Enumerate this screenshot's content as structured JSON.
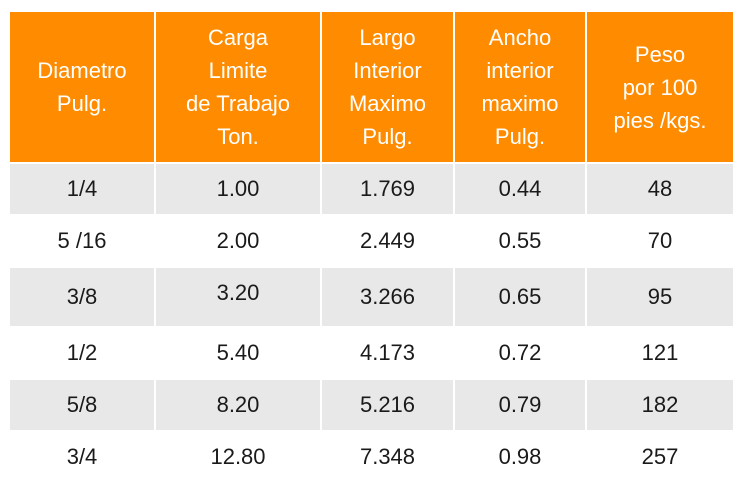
{
  "table": {
    "header": [
      [
        "Diametro",
        "Pulg."
      ],
      [
        "Carga",
        "Limite",
        "de Trabajo",
        "Ton."
      ],
      [
        "Largo",
        "Interior",
        "Maximo",
        "Pulg."
      ],
      [
        "Ancho",
        "interior",
        "maximo",
        "Pulg."
      ],
      [
        "Peso",
        "por 100",
        "pies /kgs."
      ]
    ],
    "rows": [
      [
        "1/4",
        "1.00",
        "1.769",
        "0.44",
        "48"
      ],
      [
        "5 /16",
        "2.00",
        "2.449",
        "0.55",
        "70"
      ],
      [
        "3/8",
        "3.20",
        "3.266",
        "0.65",
        "95"
      ],
      [
        "1/2",
        "5.40",
        "4.173",
        "0.72",
        "121"
      ],
      [
        "5/8",
        "8.20",
        "5.216",
        "0.79",
        "182"
      ],
      [
        "3/4",
        "12.80",
        "7.348",
        "0.98",
        "257"
      ]
    ]
  }
}
